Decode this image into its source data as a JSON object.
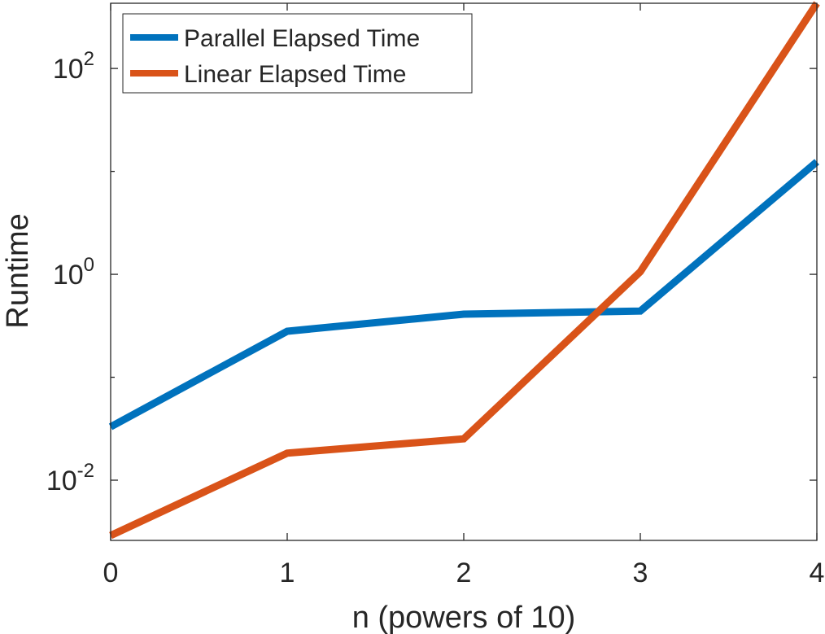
{
  "chart_data": {
    "type": "line",
    "title": "",
    "xlabel": "n (powers of 10)",
    "ylabel": "Runtime",
    "x": [
      0,
      1,
      2,
      3,
      4
    ],
    "xlim": [
      0,
      4
    ],
    "ylim": [
      0.0026,
      430
    ],
    "y_scale": "log",
    "x_ticks": [
      "0",
      "1",
      "2",
      "3",
      "4"
    ],
    "y_ticks": [
      {
        "value": 0.01,
        "base": "10",
        "exponent": "-2"
      },
      {
        "value": 1,
        "base": "10",
        "exponent": "0"
      },
      {
        "value": 100,
        "base": "10",
        "exponent": "2"
      }
    ],
    "grid": false,
    "legend_position": "top-left",
    "series": [
      {
        "name": "Parallel Elapsed Time",
        "color": "#0072BD",
        "values": [
          0.033,
          0.28,
          0.41,
          0.44,
          12.4
        ]
      },
      {
        "name": "Linear Elapsed Time",
        "color": "#D95319",
        "values": [
          0.0029,
          0.0183,
          0.0252,
          1.06,
          430
        ]
      }
    ]
  }
}
